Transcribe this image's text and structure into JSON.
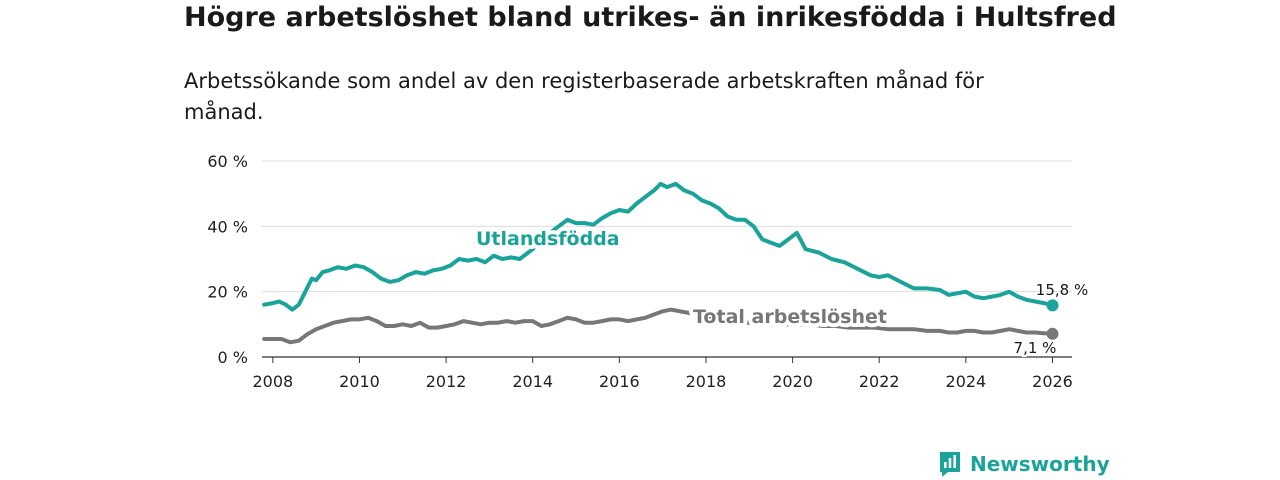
{
  "title": "Högre arbetslöshet bland utrikes- än inrikesfödda i Hultsfred",
  "subtitle": "Arbetssökande som andel av den registerbaserade arbetskraften månad för månad.",
  "brand": {
    "name": "Newsworthy"
  },
  "colors": {
    "foreign": "#1aa39a",
    "total": "#777777",
    "grid": "#dddddd"
  },
  "chart_data": {
    "type": "line",
    "title": "Högre arbetslöshet bland utrikes- än inrikesfödda i Hultsfred",
    "ylim": [
      0,
      60
    ],
    "xlim": [
      2007.75,
      2026.45
    ],
    "yticks": [
      0,
      20,
      40,
      60
    ],
    "ytick_labels": [
      "0 %",
      "20 %",
      "40 %",
      "60 %"
    ],
    "xticks": [
      2008,
      2010,
      2012,
      2014,
      2016,
      2018,
      2020,
      2022,
      2024,
      2026
    ],
    "xtick_labels": [
      "2008",
      "2010",
      "2012",
      "2014",
      "2016",
      "2018",
      "2020",
      "2022",
      "2024",
      "2026"
    ],
    "series": [
      {
        "name": "Utlandsfödda",
        "end_label": "15,8 %",
        "x": [
          2007.8,
          2008.0,
          2008.15,
          2008.3,
          2008.45,
          2008.6,
          2008.75,
          2008.9,
          2009.0,
          2009.15,
          2009.3,
          2009.5,
          2009.7,
          2009.9,
          2010.1,
          2010.3,
          2010.5,
          2010.7,
          2010.9,
          2011.1,
          2011.3,
          2011.5,
          2011.7,
          2011.9,
          2012.1,
          2012.3,
          2012.5,
          2012.7,
          2012.9,
          2013.1,
          2013.3,
          2013.5,
          2013.7,
          2014.0,
          2014.3,
          2014.6,
          2014.8,
          2015.0,
          2015.2,
          2015.4,
          2015.6,
          2015.8,
          2016.0,
          2016.2,
          2016.4,
          2016.6,
          2016.8,
          2016.95,
          2017.1,
          2017.3,
          2017.5,
          2017.7,
          2017.9,
          2018.1,
          2018.3,
          2018.5,
          2018.7,
          2018.9,
          2019.1,
          2019.3,
          2019.5,
          2019.7,
          2019.9,
          2020.1,
          2020.3,
          2020.6,
          2020.9,
          2021.2,
          2021.5,
          2021.8,
          2022.0,
          2022.2,
          2022.5,
          2022.8,
          2023.1,
          2023.4,
          2023.6,
          2023.8,
          2024.0,
          2024.2,
          2024.4,
          2024.6,
          2024.8,
          2025.0,
          2025.2,
          2025.4,
          2025.6,
          2025.8,
          2026.0
        ],
        "y": [
          16,
          16.5,
          17,
          16,
          14.5,
          16,
          20,
          24,
          23.5,
          26,
          26.5,
          27.5,
          27,
          28,
          27.5,
          26,
          24,
          23,
          23.5,
          25,
          26,
          25.5,
          26.5,
          27,
          28,
          30,
          29.5,
          30,
          29,
          31,
          30,
          30.5,
          30,
          33,
          37,
          40,
          42,
          41,
          41,
          40.5,
          42.5,
          44,
          45,
          44.5,
          47,
          49,
          51,
          53,
          52,
          53,
          51,
          50,
          48,
          47,
          45.5,
          43,
          42,
          42,
          40,
          36,
          35,
          34,
          36,
          38,
          33,
          32,
          30,
          29,
          27,
          25,
          24.5,
          25,
          23,
          21,
          21,
          20.5,
          19,
          19.5,
          20,
          18.5,
          18,
          18.5,
          19,
          20,
          18.5,
          17.5,
          17,
          16.5,
          15.8
        ]
      },
      {
        "name": "Total arbetslöshet",
        "end_label": "7,1 %",
        "x": [
          2007.8,
          2008.0,
          2008.2,
          2008.4,
          2008.6,
          2008.8,
          2009.0,
          2009.2,
          2009.4,
          2009.6,
          2009.8,
          2010.0,
          2010.2,
          2010.4,
          2010.6,
          2010.8,
          2011.0,
          2011.2,
          2011.4,
          2011.6,
          2011.8,
          2012.0,
          2012.2,
          2012.4,
          2012.6,
          2012.8,
          2013.0,
          2013.2,
          2013.4,
          2013.6,
          2013.8,
          2014.0,
          2014.2,
          2014.4,
          2014.6,
          2014.8,
          2015.0,
          2015.2,
          2015.4,
          2015.6,
          2015.8,
          2016.0,
          2016.2,
          2016.4,
          2016.6,
          2016.8,
          2017.0,
          2017.2,
          2017.4,
          2017.6,
          2017.8,
          2018.0,
          2018.3,
          2018.6,
          2018.9,
          2019.2,
          2019.5,
          2019.8,
          2020.1,
          2020.4,
          2020.7,
          2021.0,
          2021.3,
          2021.6,
          2021.9,
          2022.2,
          2022.5,
          2022.8,
          2023.1,
          2023.4,
          2023.6,
          2023.8,
          2024.0,
          2024.2,
          2024.4,
          2024.6,
          2024.8,
          2025.0,
          2025.2,
          2025.4,
          2025.6,
          2025.8,
          2026.0
        ],
        "y": [
          5.5,
          5.5,
          5.5,
          4.5,
          5,
          7,
          8.5,
          9.5,
          10.5,
          11,
          11.5,
          11.5,
          12,
          11,
          9.5,
          9.5,
          10,
          9.5,
          10.5,
          9,
          9,
          9.5,
          10,
          11,
          10.5,
          10,
          10.5,
          10.5,
          11,
          10.5,
          11,
          11,
          9.5,
          10,
          11,
          12,
          11.5,
          10.5,
          10.5,
          11,
          11.5,
          11.5,
          11,
          11.5,
          12,
          13,
          14,
          14.5,
          14,
          13.5,
          13,
          12.5,
          12,
          11,
          10.5,
          10.5,
          10,
          10,
          10,
          10,
          9.5,
          9.5,
          9,
          9,
          9,
          8.5,
          8.5,
          8.5,
          8,
          8,
          7.5,
          7.5,
          8,
          8,
          7.5,
          7.5,
          8,
          8.5,
          8,
          7.5,
          7.5,
          7.3,
          7.1
        ]
      }
    ]
  }
}
